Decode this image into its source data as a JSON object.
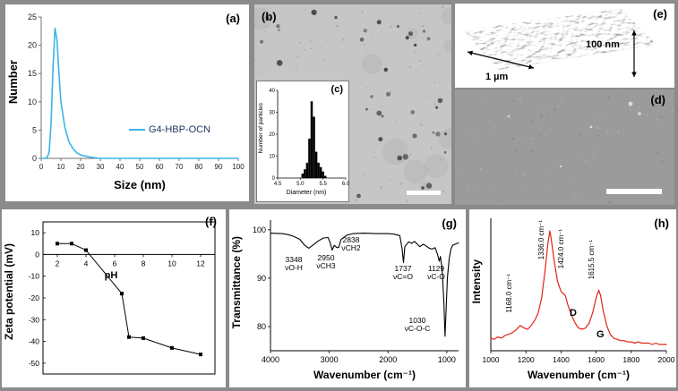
{
  "colors": {
    "background": "#8b8b8b",
    "dls_line": "#3ab5e6",
    "legend_text": "#1f3864",
    "raman_line": "#e02419",
    "tem_bg": "#c6c6c6",
    "sem_bg": "#9b9b9b"
  },
  "panels": {
    "a": {
      "label": "(a)"
    },
    "b": {
      "label": "(b)"
    },
    "c": {
      "label": "(c)"
    },
    "d": {
      "label": "(d)"
    },
    "e": {
      "label": "(e)",
      "scale_x": "1 µm",
      "scale_z": "100 nm"
    },
    "f": {
      "label": "(f)"
    },
    "g": {
      "label": "(g)"
    },
    "h": {
      "label": "(h)"
    }
  },
  "chart_data": [
    {
      "panel": "a",
      "type": "line",
      "xlabel": "Size (nm)",
      "ylabel": "Number",
      "legend": "G4-HBP-OCN",
      "xlim": [
        0,
        100
      ],
      "ylim": [
        0,
        25
      ],
      "xticks": [
        0,
        10,
        20,
        30,
        40,
        50,
        60,
        70,
        80,
        90,
        100
      ],
      "yticks": [
        0,
        5,
        10,
        15,
        20,
        25
      ],
      "x": [
        0,
        2,
        3,
        4,
        5,
        6,
        7,
        8,
        9,
        10,
        12,
        14,
        16,
        18,
        20,
        25,
        30,
        40,
        50,
        60,
        70,
        80,
        90,
        100
      ],
      "y": [
        0,
        0,
        0.2,
        1,
        6,
        16,
        23,
        21,
        15,
        10,
        5.5,
        3,
        1.8,
        1,
        0.6,
        0.2,
        0,
        0,
        0,
        0,
        0,
        0,
        0,
        0
      ]
    },
    {
      "panel": "c",
      "type": "bar",
      "xlabel": "Diameter (nm)",
      "ylabel": "Number of particles",
      "xlim": [
        4.5,
        6.0
      ],
      "ylim": [
        0,
        40
      ],
      "xticks": [
        "4.5",
        "5.0",
        "5.5",
        "6.0"
      ],
      "yticks": [
        0,
        10,
        20,
        30,
        40
      ],
      "bin_start": 5.05,
      "bin_width": 0.05,
      "values": [
        2,
        4,
        7,
        18,
        35,
        28,
        12,
        7,
        5,
        3,
        1
      ]
    },
    {
      "panel": "f",
      "type": "scatter-line",
      "xlabel": "pH",
      "ylabel": "Zeta potential (mV)",
      "xlim": [
        1,
        13
      ],
      "ylim": [
        -55,
        15
      ],
      "xticks": [
        2,
        4,
        6,
        8,
        10,
        12
      ],
      "yticks": [
        10,
        0,
        -10,
        -20,
        -30,
        -40,
        -50
      ],
      "x": [
        2,
        3,
        4,
        6.5,
        7,
        8,
        10,
        12
      ],
      "y": [
        5,
        5,
        2,
        -18,
        -38,
        -38.5,
        -43,
        -46
      ]
    },
    {
      "panel": "g",
      "type": "line",
      "xlabel": "Wavenumber (cm⁻¹)",
      "ylabel": "Transmittance (%)",
      "xlim": [
        800,
        4000
      ],
      "x_reversed": true,
      "ylim": [
        75,
        102
      ],
      "xticks": [
        4000,
        3000,
        2000,
        1000
      ],
      "yticks": [
        80,
        90,
        100
      ],
      "x": [
        4000,
        3800,
        3700,
        3600,
        3500,
        3420,
        3348,
        3280,
        3200,
        3100,
        3020,
        2990,
        2950,
        2915,
        2870,
        2838,
        2800,
        2700,
        2600,
        2400,
        2200,
        2000,
        1900,
        1800,
        1760,
        1737,
        1715,
        1650,
        1600,
        1550,
        1500,
        1460,
        1400,
        1370,
        1300,
        1250,
        1200,
        1160,
        1129,
        1110,
        1080,
        1050,
        1030,
        1010,
        990,
        960,
        930,
        900,
        860,
        820,
        800
      ],
      "y": [
        99.3,
        99.2,
        99,
        98.6,
        98,
        96.8,
        96.2,
        96.8,
        97.6,
        98.3,
        98.4,
        97.5,
        95.8,
        96.8,
        96.3,
        96.4,
        98,
        98.9,
        99.2,
        99.3,
        99.2,
        99.2,
        99.1,
        98.8,
        96,
        93.2,
        96.5,
        97.5,
        97.2,
        97.6,
        97,
        96.5,
        97,
        96.8,
        96.2,
        96,
        96.3,
        95,
        93.5,
        94.5,
        92,
        85,
        78,
        84,
        90,
        94,
        96,
        96.8,
        97,
        97.2,
        97.3
      ],
      "annotations": [
        {
          "line1": "3348",
          "line2": "νO-H"
        },
        {
          "line1": "2950",
          "line2": "νCH3"
        },
        {
          "line1": "2838",
          "line2": "νCH2"
        },
        {
          "line1": "1737",
          "line2": "νC=O"
        },
        {
          "line1": "1129",
          "line2": "νC-O"
        },
        {
          "line1": "1030",
          "line2": "νC-O-C"
        }
      ]
    },
    {
      "panel": "h",
      "type": "line",
      "xlabel": "Wavenumber (cm⁻¹)",
      "ylabel": "Intensity",
      "xlim": [
        1000,
        2000
      ],
      "ylim": [
        0,
        1.05
      ],
      "xticks": [
        1000,
        1200,
        1400,
        1600,
        1800,
        2000
      ],
      "x": [
        1000,
        1020,
        1040,
        1060,
        1080,
        1100,
        1120,
        1140,
        1168,
        1190,
        1210,
        1230,
        1250,
        1270,
        1290,
        1310,
        1325,
        1336,
        1345,
        1360,
        1380,
        1400,
        1424,
        1440,
        1460,
        1480,
        1500,
        1520,
        1540,
        1560,
        1580,
        1600,
        1615,
        1625,
        1640,
        1660,
        1680,
        1700,
        1720,
        1740,
        1760,
        1780,
        1800,
        1820,
        1840,
        1860,
        1880,
        1900,
        1920,
        1940,
        1960,
        1980,
        2000
      ],
      "y": [
        0.1,
        0.09,
        0.11,
        0.1,
        0.12,
        0.13,
        0.14,
        0.16,
        0.2,
        0.18,
        0.17,
        0.2,
        0.24,
        0.3,
        0.42,
        0.65,
        0.85,
        0.95,
        0.88,
        0.72,
        0.55,
        0.47,
        0.44,
        0.36,
        0.28,
        0.22,
        0.18,
        0.17,
        0.18,
        0.22,
        0.3,
        0.42,
        0.48,
        0.44,
        0.32,
        0.2,
        0.13,
        0.1,
        0.09,
        0.08,
        0.08,
        0.07,
        0.07,
        0.06,
        0.07,
        0.06,
        0.06,
        0.06,
        0.05,
        0.06,
        0.05,
        0.05,
        0.05
      ],
      "peak_labels": [
        "1168.0 cm⁻¹",
        "1336.0 cm⁻¹",
        "1424.0 cm⁻¹",
        "1615.5 cm⁻¹"
      ],
      "band_labels": [
        "D",
        "G"
      ]
    }
  ]
}
